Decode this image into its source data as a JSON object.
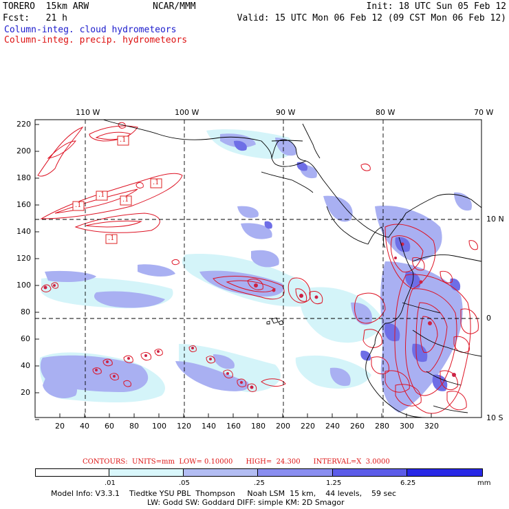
{
  "header": {
    "left_line1": "TORERO  15km ARW",
    "center_line1": "NCAR/MMM",
    "right_line1": "Init: 18 UTC Sun 05 Feb 12",
    "left_line2": "Fcst:   21 h",
    "right_line2": "Valid: 15 UTC Mon 06 Feb 12 (09 CST Mon 06 Feb 12)",
    "legend_blue": "Column-integ. cloud hydrometeors",
    "legend_red": "Column-integ. precip. hydrometeors"
  },
  "map": {
    "top_lon_labels": [
      "110 W",
      "100 W",
      "90 W",
      "80 W",
      "70 W"
    ],
    "right_lat_labels": [
      "10 N",
      "0",
      "10 S"
    ],
    "left_y_ticks": [
      "220",
      "200",
      "180",
      "160",
      "140",
      "120",
      "100",
      "80",
      "60",
      "40",
      "20"
    ],
    "bottom_x_ticks": [
      "20",
      "40",
      "60",
      "80",
      "100",
      "120",
      "140",
      "160",
      "180",
      "200",
      "220",
      "240",
      "260",
      "280",
      "300",
      "320"
    ],
    "contour_labels": [
      ".1",
      ".1",
      ".1",
      ".1",
      ".1",
      ".1"
    ],
    "colors": {
      "cloud_light": "#c8f2f8",
      "cloud_mid": "#a9b0f2",
      "cloud_dark": "#7070e6",
      "precip_contour": "#dd1122",
      "coastline": "#000000"
    }
  },
  "footer": {
    "contour_info": "CONTOURS:  UNITS=mm  LOW= 0.10000      HIGH=  24.300      INTERVAL=X  3.0000",
    "colorbar_ticks": [
      ".01",
      ".05",
      ".25",
      "1.25",
      "6.25"
    ],
    "colorbar_unit": "mm",
    "colorbar_colors": [
      "#ffffff",
      "#d9f7fb",
      "#b3bdf3",
      "#8a8ef0",
      "#5c5ce9",
      "#2828e6"
    ],
    "model_info_line1": "Model Info: V3.3.1    Tiedtke YSU PBL  Thompson     Noah LSM  15 km,    44 levels,    59 sec",
    "model_info_line2": "LW: Godd SW: Goddard DIFF: simple KM: 2D Smagor"
  }
}
